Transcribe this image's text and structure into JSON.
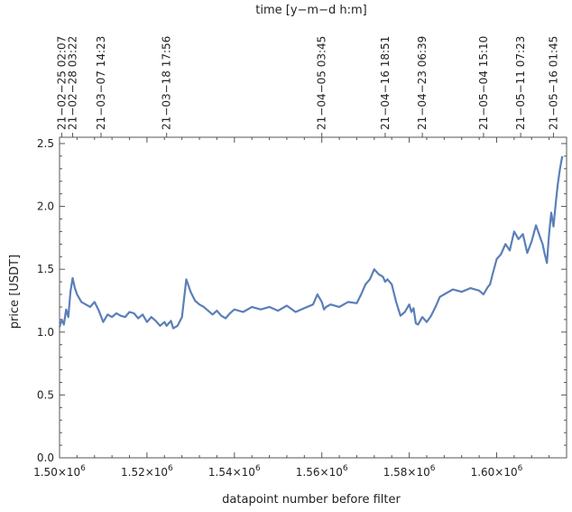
{
  "chart_data": {
    "type": "line",
    "title": "",
    "xlabel": "datapoint number before filter",
    "ylabel": "price [USDT]",
    "x2label": "time [y−m−d h:m]",
    "xlim": [
      1500000,
      1616000
    ],
    "ylim": [
      0.0,
      2.55
    ],
    "grid": false,
    "x_ticks": [
      {
        "value": 1500000,
        "mantissa": "1.50",
        "exponent": "6"
      },
      {
        "value": 1520000,
        "mantissa": "1.52",
        "exponent": "6"
      },
      {
        "value": 1540000,
        "mantissa": "1.54",
        "exponent": "6"
      },
      {
        "value": 1560000,
        "mantissa": "1.56",
        "exponent": "6"
      },
      {
        "value": 1580000,
        "mantissa": "1.58",
        "exponent": "6"
      },
      {
        "value": 1600000,
        "mantissa": "1.60",
        "exponent": "6"
      }
    ],
    "y_ticks": [
      {
        "value": 0.0,
        "label": "0.0"
      },
      {
        "value": 0.5,
        "label": "0.5"
      },
      {
        "value": 1.0,
        "label": "1.0"
      },
      {
        "value": 1.5,
        "label": "1.5"
      },
      {
        "value": 2.0,
        "label": "2.0"
      },
      {
        "value": 2.5,
        "label": "2.5"
      }
    ],
    "top_ticks": [
      {
        "value": 1500500,
        "label": "21−02−25 02:07"
      },
      {
        "value": 1503000,
        "label": "21−02−28 03:22"
      },
      {
        "value": 1509500,
        "label": "21−03−07 14:23"
      },
      {
        "value": 1524500,
        "label": "21−03−18 17:56"
      },
      {
        "value": 1560000,
        "label": "21−04−05 03:45"
      },
      {
        "value": 1574500,
        "label": "21−04−16 18:51"
      },
      {
        "value": 1583000,
        "label": "21−04−23 06:39"
      },
      {
        "value": 1597000,
        "label": "21−05−04 15:10"
      },
      {
        "value": 1605500,
        "label": "21−05−11 07:23"
      },
      {
        "value": 1613000,
        "label": "21−05−16 01:45"
      }
    ],
    "series": [
      {
        "color": "#5b7fb8",
        "x": [
          1500000,
          1500500,
          1501000,
          1501500,
          1502000,
          1502500,
          1503000,
          1503500,
          1504000,
          1505000,
          1506000,
          1507000,
          1508000,
          1509000,
          1510000,
          1511000,
          1512000,
          1513000,
          1514000,
          1515000,
          1516000,
          1517000,
          1518000,
          1519000,
          1520000,
          1521000,
          1522000,
          1523000,
          1524000,
          1524500,
          1525000,
          1525500,
          1526000,
          1527000,
          1528000,
          1529000,
          1530000,
          1531000,
          1532000,
          1533000,
          1534000,
          1535000,
          1536000,
          1537000,
          1538000,
          1539000,
          1540000,
          1542000,
          1544000,
          1546000,
          1548000,
          1550000,
          1552000,
          1554000,
          1556000,
          1558000,
          1559000,
          1560000,
          1560500,
          1561000,
          1562000,
          1564000,
          1566000,
          1568000,
          1569000,
          1570000,
          1571000,
          1572000,
          1573000,
          1574000,
          1574500,
          1575000,
          1576000,
          1577000,
          1578000,
          1579000,
          1580000,
          1580500,
          1581000,
          1581500,
          1582000,
          1583000,
          1584000,
          1585000,
          1586000,
          1587000,
          1588000,
          1590000,
          1592000,
          1594000,
          1596000,
          1597000,
          1598000,
          1598500,
          1599000,
          1600000,
          1601000,
          1602000,
          1603000,
          1604000,
          1605000,
          1606000,
          1607000,
          1608000,
          1609000,
          1610000,
          1610500,
          1611000,
          1611500,
          1612000,
          1612500,
          1613000,
          1613500,
          1614000,
          1614500,
          1615000
        ],
        "y": [
          1.04,
          1.1,
          1.06,
          1.18,
          1.12,
          1.32,
          1.43,
          1.35,
          1.3,
          1.24,
          1.22,
          1.2,
          1.24,
          1.17,
          1.08,
          1.14,
          1.12,
          1.15,
          1.13,
          1.12,
          1.16,
          1.15,
          1.11,
          1.14,
          1.08,
          1.12,
          1.09,
          1.05,
          1.08,
          1.05,
          1.07,
          1.09,
          1.03,
          1.05,
          1.12,
          1.42,
          1.32,
          1.25,
          1.22,
          1.2,
          1.17,
          1.14,
          1.17,
          1.13,
          1.11,
          1.15,
          1.18,
          1.16,
          1.2,
          1.18,
          1.2,
          1.17,
          1.21,
          1.16,
          1.19,
          1.22,
          1.3,
          1.24,
          1.18,
          1.2,
          1.22,
          1.2,
          1.24,
          1.23,
          1.3,
          1.38,
          1.42,
          1.5,
          1.46,
          1.44,
          1.4,
          1.42,
          1.38,
          1.24,
          1.13,
          1.16,
          1.22,
          1.16,
          1.19,
          1.07,
          1.06,
          1.12,
          1.08,
          1.13,
          1.2,
          1.28,
          1.3,
          1.34,
          1.32,
          1.35,
          1.33,
          1.3,
          1.36,
          1.38,
          1.45,
          1.58,
          1.62,
          1.7,
          1.65,
          1.8,
          1.74,
          1.78,
          1.63,
          1.72,
          1.85,
          1.75,
          1.7,
          1.62,
          1.55,
          1.78,
          1.95,
          1.84,
          2.02,
          2.18,
          2.3,
          2.4
        ]
      }
    ]
  }
}
